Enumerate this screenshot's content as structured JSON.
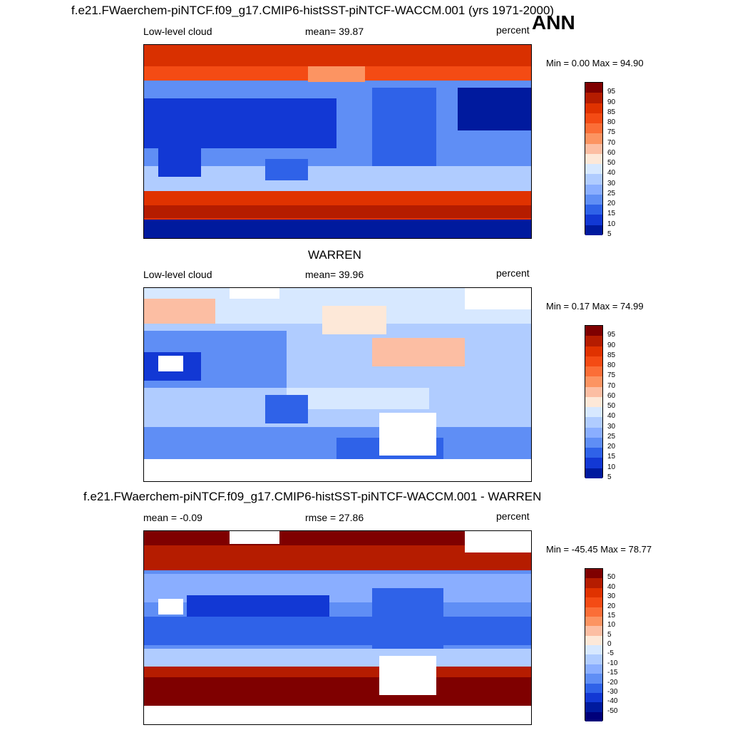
{
  "header": {
    "title": "f.e21.FWaerchem-piNTCF.f09_g17.CMIP6-histSST-piNTCF-WACCM.001 (yrs 1971-2000)",
    "season": "ANN"
  },
  "panels": [
    {
      "subtitle": "",
      "left": "Low-level cloud",
      "center": "mean=  39.87",
      "right": "percent",
      "minmax": "Min =   0.00 Max =  94.90",
      "colorbar": [
        "95",
        "90",
        "85",
        "80",
        "75",
        "70",
        "60",
        "50",
        "40",
        "30",
        "25",
        "20",
        "15",
        "10",
        "5"
      ],
      "colors": [
        "#7f0000",
        "#b51c00",
        "#e03200",
        "#f44b14",
        "#fb6e37",
        "#fc9462",
        "#fcbea3",
        "#fde8d8",
        "#d7e8ff",
        "#b0ccff",
        "#8aaeff",
        "#5f8ef5",
        "#2f62e8",
        "#1238d4",
        "#001a9e"
      ]
    },
    {
      "subtitle": "WARREN",
      "left": "Low-level cloud",
      "center": "mean=  39.96",
      "right": "percent",
      "minmax": "Min =   0.17 Max =  74.99",
      "colorbar": [
        "95",
        "90",
        "85",
        "80",
        "75",
        "70",
        "60",
        "50",
        "40",
        "30",
        "25",
        "20",
        "15",
        "10",
        "5"
      ],
      "colors": [
        "#7f0000",
        "#b51c00",
        "#e03200",
        "#f44b14",
        "#fb6e37",
        "#fc9462",
        "#fcbea3",
        "#fde8d8",
        "#d7e8ff",
        "#b0ccff",
        "#8aaeff",
        "#5f8ef5",
        "#2f62e8",
        "#1238d4",
        "#001a9e"
      ]
    },
    {
      "subtitle": "f.e21.FWaerchem-piNTCF.f09_g17.CMIP6-histSST-piNTCF-WACCM.001 - WARREN",
      "left": "mean =  -0.09",
      "center": "rmse =  27.86",
      "right": "percent",
      "minmax": "Min = -45.45 Max =  78.77",
      "colorbar": [
        "50",
        "40",
        "30",
        "20",
        "15",
        "10",
        "5",
        "0",
        "-5",
        "-10",
        "-15",
        "-20",
        "-30",
        "-40",
        "-50"
      ],
      "colors": [
        "#7f0000",
        "#b51c00",
        "#e03200",
        "#f44b14",
        "#fb6e37",
        "#fc9462",
        "#fcbea3",
        "#fde8d8",
        "#d7e8ff",
        "#b0ccff",
        "#8aaeff",
        "#5f8ef5",
        "#2f62e8",
        "#1238d4",
        "#001a9e",
        "#00007a"
      ]
    }
  ]
}
